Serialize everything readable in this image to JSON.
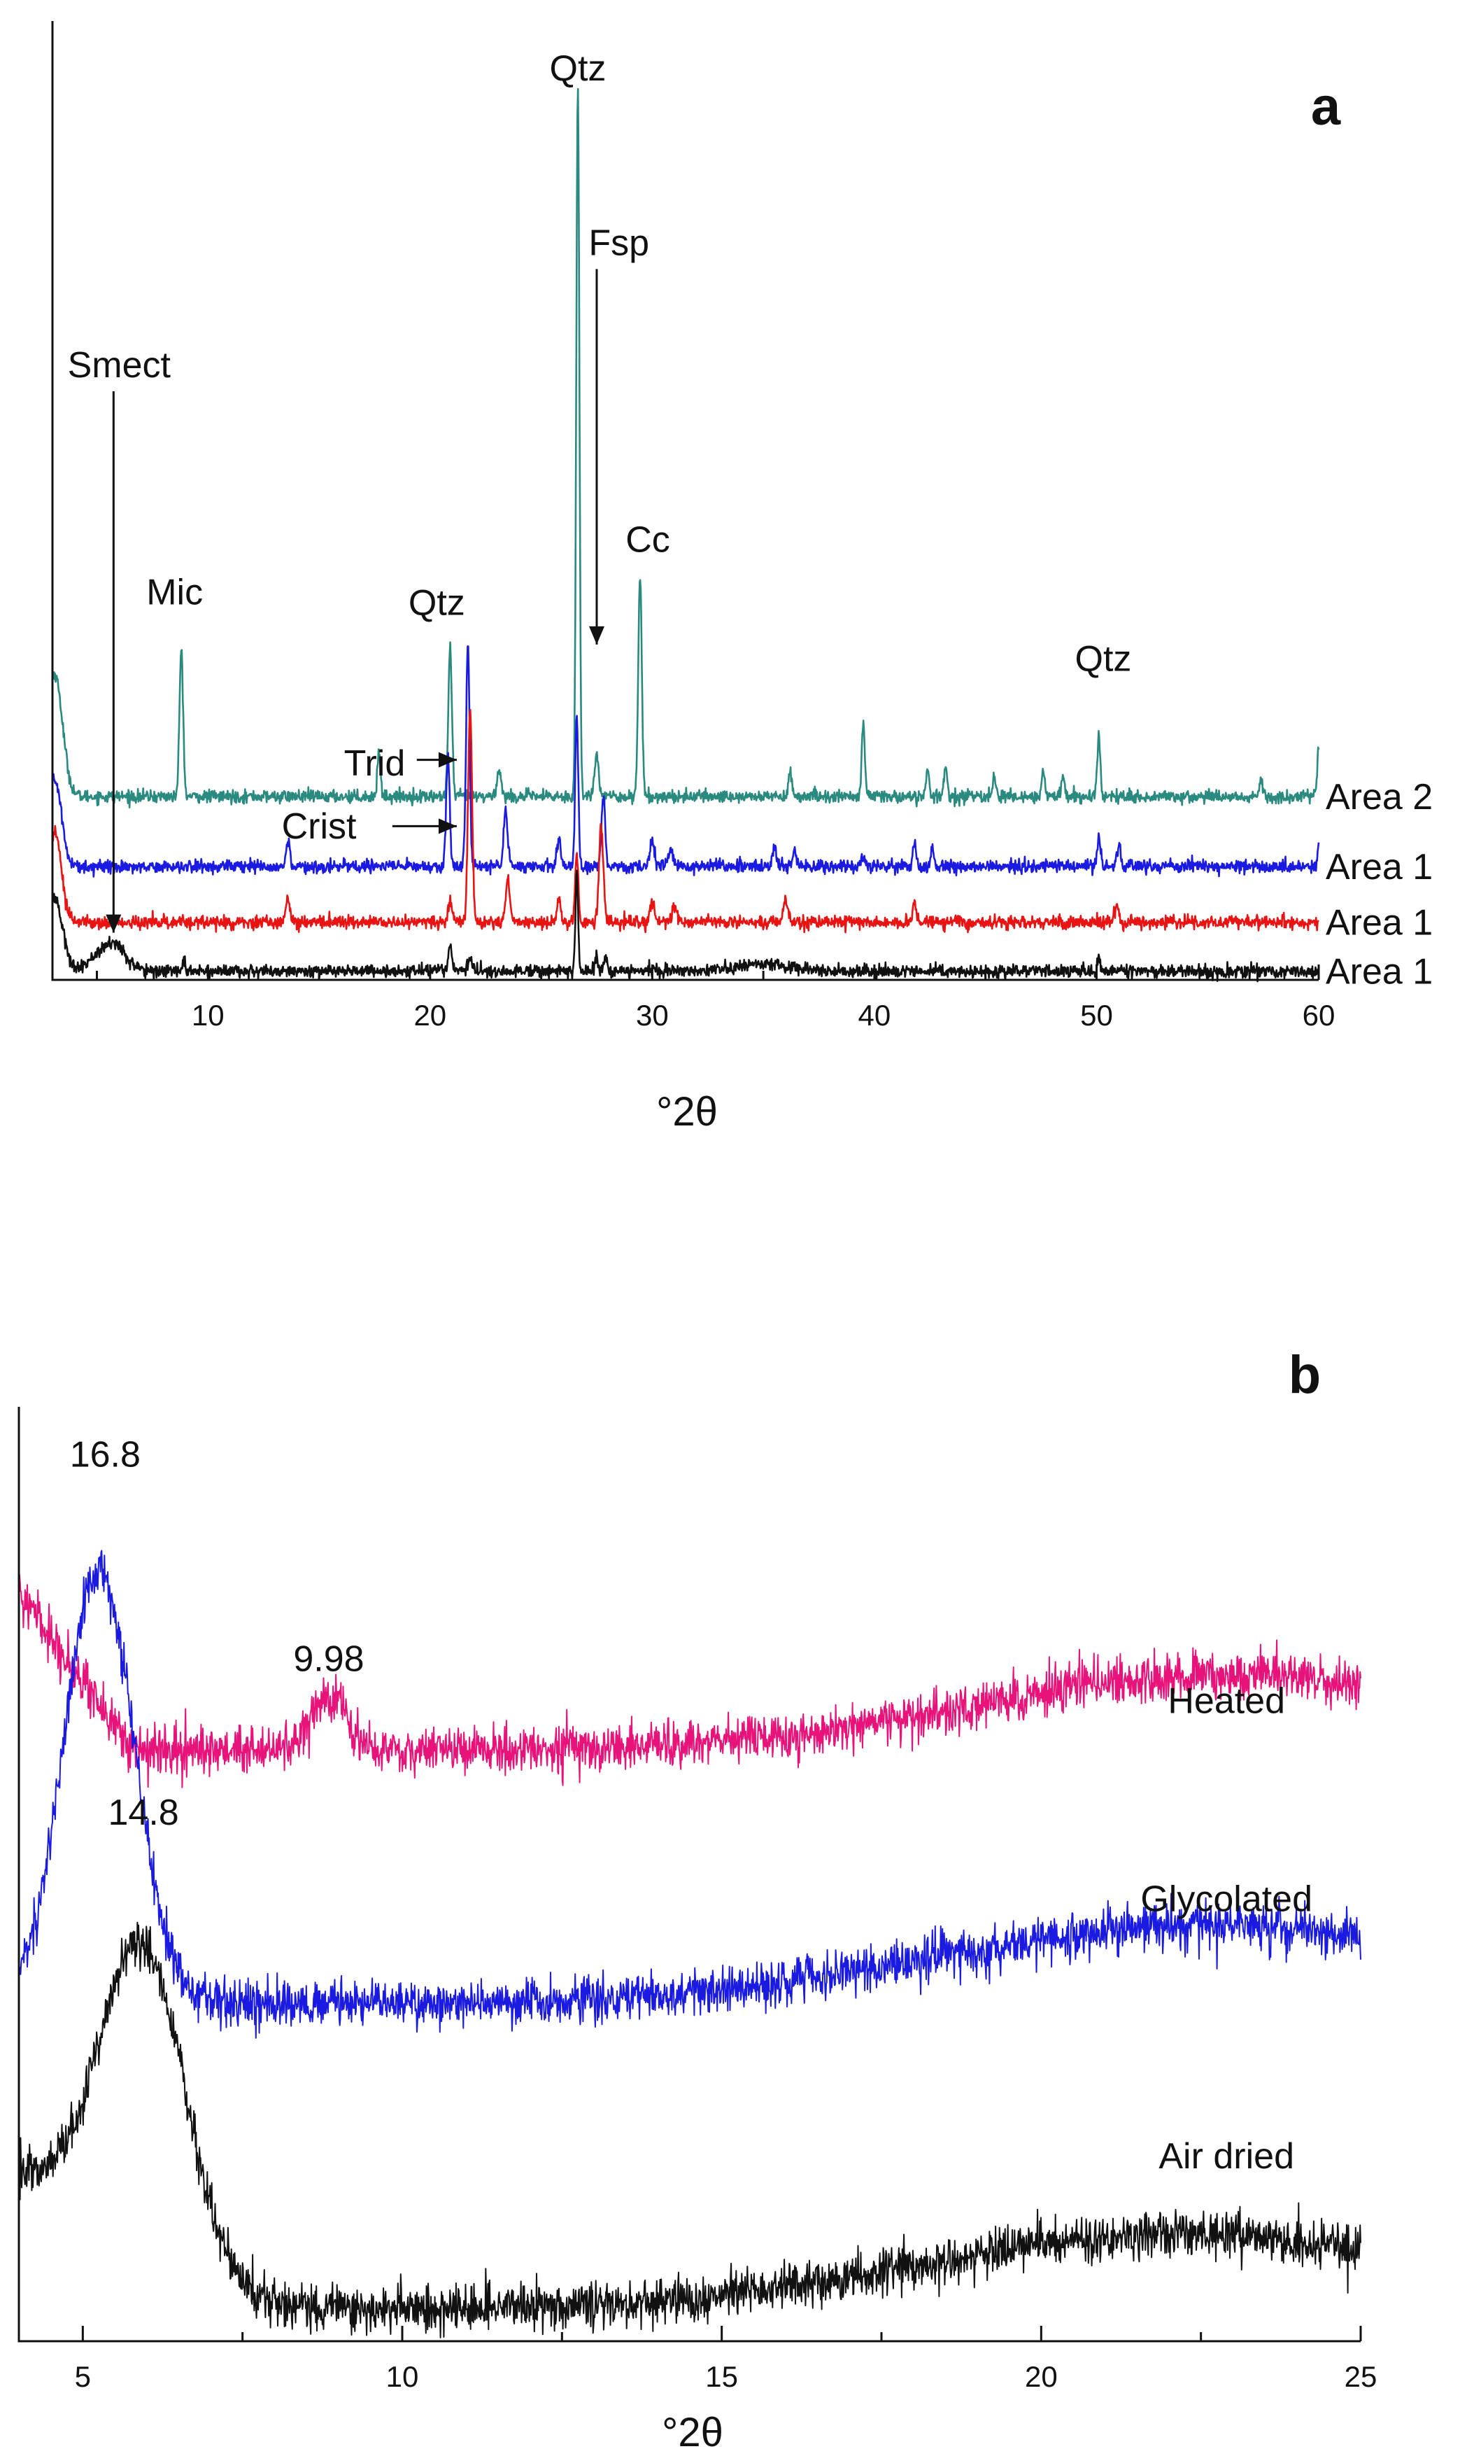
{
  "chart_data": [
    {
      "panel": "a",
      "type": "line",
      "xlabel": "°2θ",
      "ylabel": "",
      "xlim": [
        3,
        60
      ],
      "x_ticks": [
        10,
        20,
        30,
        40,
        50,
        60
      ],
      "y_axis_ticks": "none",
      "grid": false,
      "series": [
        {
          "name": "Area 2",
          "color": "#2a8a80",
          "baseline": 10,
          "noise": 0.18,
          "peaks": [
            {
              "x": 3.1,
              "h": 7,
              "w": 0.35
            },
            {
              "x": 8.8,
              "h": 8.5,
              "w": 0.08
            },
            {
              "x": 17.7,
              "h": 2.6,
              "w": 0.07
            },
            {
              "x": 20.9,
              "h": 8.6,
              "w": 0.08
            },
            {
              "x": 23.1,
              "h": 1.6,
              "w": 0.09
            },
            {
              "x": 26.65,
              "h": 40.5,
              "w": 0.07
            },
            {
              "x": 27.5,
              "h": 2.4,
              "w": 0.1
            },
            {
              "x": 29.45,
              "h": 12.6,
              "w": 0.08
            },
            {
              "x": 36.2,
              "h": 1.6,
              "w": 0.07
            },
            {
              "x": 39.5,
              "h": 4.1,
              "w": 0.07
            },
            {
              "x": 42.4,
              "h": 1.4,
              "w": 0.07
            },
            {
              "x": 43.2,
              "h": 1.7,
              "w": 0.07
            },
            {
              "x": 45.4,
              "h": 1.2,
              "w": 0.07
            },
            {
              "x": 47.6,
              "h": 1.4,
              "w": 0.07
            },
            {
              "x": 48.5,
              "h": 1.2,
              "w": 0.07
            },
            {
              "x": 50.1,
              "h": 3.4,
              "w": 0.07
            },
            {
              "x": 57.4,
              "h": 0.9,
              "w": 0.07
            },
            {
              "x": 60.0,
              "h": 2.8,
              "w": 0.06
            }
          ]
        },
        {
          "name": "Area 1",
          "color": "#1a1ae0",
          "baseline": 6,
          "noise": 0.18,
          "peaks": [
            {
              "x": 3.1,
              "h": 5,
              "w": 0.3
            },
            {
              "x": 13.6,
              "h": 1.3,
              "w": 0.1
            },
            {
              "x": 20.8,
              "h": 6.3,
              "w": 0.08
            },
            {
              "x": 21.7,
              "h": 12.7,
              "w": 0.08
            },
            {
              "x": 23.4,
              "h": 3.3,
              "w": 0.09
            },
            {
              "x": 25.8,
              "h": 1.6,
              "w": 0.08
            },
            {
              "x": 26.6,
              "h": 8.6,
              "w": 0.07
            },
            {
              "x": 27.8,
              "h": 4.1,
              "w": 0.08
            },
            {
              "x": 30.0,
              "h": 1.5,
              "w": 0.1
            },
            {
              "x": 30.8,
              "h": 0.9,
              "w": 0.12
            },
            {
              "x": 35.5,
              "h": 1.0,
              "w": 0.09
            },
            {
              "x": 36.4,
              "h": 0.8,
              "w": 0.08
            },
            {
              "x": 39.5,
              "h": 0.7,
              "w": 0.08
            },
            {
              "x": 41.8,
              "h": 1.4,
              "w": 0.07
            },
            {
              "x": 42.6,
              "h": 1.1,
              "w": 0.07
            },
            {
              "x": 50.1,
              "h": 1.6,
              "w": 0.07
            },
            {
              "x": 51.0,
              "h": 1.3,
              "w": 0.08
            },
            {
              "x": 60.0,
              "h": 1.3,
              "w": 0.06
            }
          ]
        },
        {
          "name": "Area 1",
          "color": "#e81414",
          "baseline": 2.8,
          "noise": 0.18,
          "peaks": [
            {
              "x": 3.1,
              "h": 5.2,
              "w": 0.3
            },
            {
              "x": 13.6,
              "h": 1.3,
              "w": 0.1
            },
            {
              "x": 20.9,
              "h": 1.2,
              "w": 0.1
            },
            {
              "x": 21.8,
              "h": 12.2,
              "w": 0.09
            },
            {
              "x": 23.5,
              "h": 2.5,
              "w": 0.09
            },
            {
              "x": 25.8,
              "h": 1.4,
              "w": 0.08
            },
            {
              "x": 26.6,
              "h": 4.0,
              "w": 0.07
            },
            {
              "x": 27.7,
              "h": 5.4,
              "w": 0.1
            },
            {
              "x": 30.0,
              "h": 1.2,
              "w": 0.1
            },
            {
              "x": 31.0,
              "h": 0.8,
              "w": 0.12
            },
            {
              "x": 36.0,
              "h": 1.3,
              "w": 0.1
            },
            {
              "x": 41.8,
              "h": 1.1,
              "w": 0.07
            },
            {
              "x": 50.9,
              "h": 0.9,
              "w": 0.1
            }
          ]
        },
        {
          "name": "Area 1",
          "color": "#111111",
          "baseline": 0,
          "noise": 0.18,
          "peaks": [
            {
              "x": 3.1,
              "h": 4.2,
              "w": 0.35
            },
            {
              "x": 5.6,
              "h": 1.6,
              "w": 0.65
            },
            {
              "x": 8.9,
              "h": 0.5,
              "w": 0.08
            },
            {
              "x": 20.9,
              "h": 1.6,
              "w": 0.08
            },
            {
              "x": 21.8,
              "h": 0.8,
              "w": 0.1
            },
            {
              "x": 26.6,
              "h": 5.8,
              "w": 0.06
            },
            {
              "x": 27.5,
              "h": 0.9,
              "w": 0.08
            },
            {
              "x": 27.9,
              "h": 0.9,
              "w": 0.08
            },
            {
              "x": 35.0,
              "h": 0.4,
              "w": 1.2
            },
            {
              "x": 50.1,
              "h": 0.8,
              "w": 0.06
            }
          ]
        }
      ],
      "annotations": [
        {
          "text": "Qtz",
          "x": 26.65,
          "y": 51
        },
        {
          "text": "Fsp",
          "x": 28.5,
          "y": 41
        },
        {
          "text": "Smect",
          "x": 6.0,
          "y": 34
        },
        {
          "text": "Cc",
          "x": 29.8,
          "y": 24
        },
        {
          "text": "Mic",
          "x": 8.5,
          "y": 21
        },
        {
          "text": "Qtz",
          "x": 20.3,
          "y": 20.4
        },
        {
          "text": "Qtz",
          "x": 50.3,
          "y": 17.2
        },
        {
          "text": "Trid",
          "x": 17.5,
          "y": 11.2
        },
        {
          "text": "Crist",
          "x": 15.0,
          "y": 7.6
        }
      ],
      "arrows": [
        {
          "from": [
            27.5,
            40.2
          ],
          "to": [
            27.5,
            18.7
          ]
        },
        {
          "from": [
            5.75,
            33.2
          ],
          "to": [
            5.75,
            2.2
          ]
        },
        {
          "from": [
            19.4,
            12.1
          ],
          "to": [
            21.2,
            12.1
          ]
        },
        {
          "from": [
            18.3,
            8.3
          ],
          "to": [
            21.2,
            8.3
          ]
        }
      ],
      "panel_label": "a",
      "ylim": [
        -0.5,
        54
      ]
    },
    {
      "panel": "b",
      "type": "line",
      "xlabel": "°2θ",
      "ylabel": "",
      "xlim": [
        4,
        25
      ],
      "x_ticks": [
        5,
        10,
        15,
        20,
        25
      ],
      "y_axis_ticks": "none",
      "grid": false,
      "series": [
        {
          "name": "Heated",
          "color": "#e8137a",
          "baseline": 27.5,
          "noise": 0.55,
          "slope": [
            {
              "x": 4,
              "dy": 8
            },
            {
              "x": 5.8,
              "dy": 0.5
            }
          ],
          "peaks": [
            {
              "x": 8.85,
              "h": 2.6,
              "w": 0.3
            },
            {
              "x": 23,
              "h": 3.6,
              "w": 4.0
            }
          ]
        },
        {
          "name": "Glycolated",
          "color": "#1a1ae0",
          "baseline": 16,
          "noise": 0.55,
          "slope": [
            {
              "x": 4,
              "dy": 0
            },
            {
              "x": 5.8,
              "dy": 0
            }
          ],
          "peaks": [
            {
              "x": 5.25,
              "h": 20.5,
              "w": 0.55
            },
            {
              "x": 22.5,
              "h": 3.8,
              "w": 4.0
            }
          ]
        },
        {
          "name": "Air dried",
          "color": "#111111",
          "baseline": 1.5,
          "noise": 0.55,
          "slope": [
            {
              "x": 4,
              "dy": 0
            },
            {
              "x": 5.8,
              "dy": 0
            }
          ],
          "peaks": [
            {
              "x": 5.95,
              "h": 14.5,
              "w": 0.65
            },
            {
              "x": 4.0,
              "h": 6.2,
              "w": 1.6
            },
            {
              "x": 22.3,
              "h": 3.6,
              "w": 4.0
            }
          ]
        }
      ],
      "annotations": [
        {
          "text": "16.8",
          "x": 5.35,
          "y": 41.5
        },
        {
          "text": "9.98",
          "x": 8.85,
          "y": 31.8
        },
        {
          "text": "14.8",
          "x": 5.95,
          "y": 24.5
        },
        {
          "text": "Heated",
          "x": 22.9,
          "y": 29.8
        },
        {
          "text": "Glycolated",
          "x": 22.9,
          "y": 20.4
        },
        {
          "text": "Air dried",
          "x": 22.9,
          "y": 8.2
        }
      ],
      "panel_label": "b",
      "ylim": [
        0,
        44
      ]
    }
  ]
}
